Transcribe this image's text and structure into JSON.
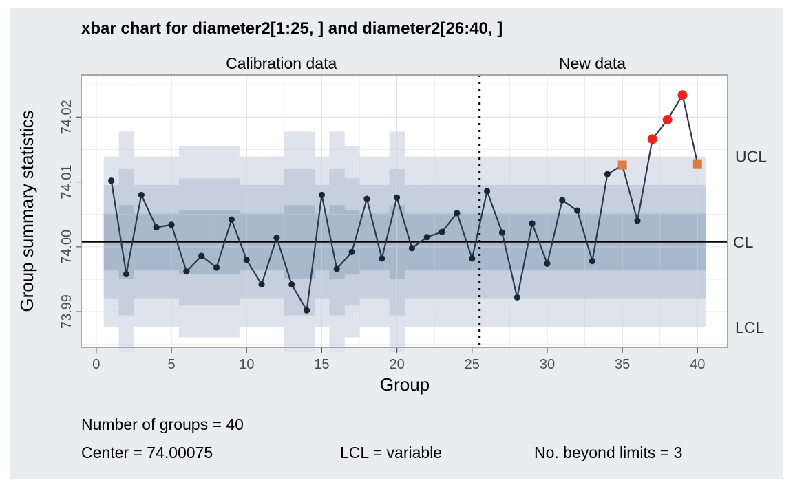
{
  "chart_data": {
    "type": "line",
    "title": "xbar chart for diameter2[1:25, ] and diameter2[26:40, ]",
    "xlabel": "Group",
    "ylabel": "Group summary statistics",
    "xlim": [
      -1,
      42
    ],
    "ylim": [
      73.9845,
      74.0265
    ],
    "x_ticks": [
      0,
      5,
      10,
      15,
      20,
      25,
      30,
      35,
      40
    ],
    "y_ticks": [
      73.99,
      74.0,
      74.01,
      74.02
    ],
    "x_tick_labels": [
      "0",
      "5",
      "10",
      "15",
      "20",
      "25",
      "30",
      "35",
      "40"
    ],
    "y_tick_labels": [
      "73.99",
      "74.00",
      "74.01",
      "74.02"
    ],
    "sections": [
      {
        "label": "Calibration data",
        "from": 1,
        "to": 25
      },
      {
        "label": "New data",
        "from": 26,
        "to": 40
      }
    ],
    "divider_x": 25.5,
    "center": 74.00075,
    "center_label": "CL",
    "ucl_label": "UCL",
    "lcl_label": "LCL",
    "sigma_band": 0.00439,
    "group_sizes": [
      5,
      3,
      5,
      5,
      5,
      4,
      4,
      4,
      4,
      5,
      5,
      5,
      3,
      3,
      5,
      3,
      4,
      5,
      5,
      3,
      5,
      5,
      5,
      5,
      5,
      5,
      5,
      5,
      5,
      5,
      5,
      5,
      5,
      5,
      5,
      5,
      5,
      5,
      5,
      5
    ],
    "x": [
      1,
      2,
      3,
      4,
      5,
      6,
      7,
      8,
      9,
      10,
      11,
      12,
      13,
      14,
      15,
      16,
      17,
      18,
      19,
      20,
      21,
      22,
      23,
      24,
      25,
      26,
      27,
      28,
      29,
      30,
      31,
      32,
      33,
      34,
      35,
      36,
      37,
      38,
      39,
      40
    ],
    "values": [
      74.0102,
      73.9958,
      74.008,
      74.003,
      74.0034,
      73.9962,
      73.9986,
      73.9968,
      74.0042,
      73.998,
      73.9942,
      74.0014,
      73.9942,
      73.9902,
      74.008,
      73.9966,
      73.9992,
      74.0074,
      73.9982,
      74.0076,
      73.9998,
      74.0015,
      74.0023,
      74.0052,
      73.9982,
      74.0086,
      74.0022,
      73.9922,
      74.0036,
      73.9974,
      74.0072,
      74.0056,
      73.9978,
      74.0112,
      74.0126,
      74.004,
      74.0166,
      74.0196,
      74.0234,
      74.0128
    ],
    "point_status": [
      "n",
      "n",
      "n",
      "n",
      "n",
      "n",
      "n",
      "n",
      "n",
      "n",
      "n",
      "n",
      "n",
      "n",
      "n",
      "n",
      "n",
      "n",
      "n",
      "n",
      "n",
      "n",
      "n",
      "n",
      "n",
      "n",
      "n",
      "n",
      "n",
      "n",
      "n",
      "n",
      "n",
      "n",
      "warning",
      "n",
      "beyond",
      "beyond",
      "beyond",
      "warning"
    ],
    "colors": {
      "panel_bg": "#ebecf0",
      "plot_bg": "#ffffff",
      "band_outer": "#dfe4ec",
      "band_middle": "#c5cfdd",
      "band_inner": "#aab8cd",
      "line": "#2b3a4f",
      "point": "#1b2533",
      "beyond": "#e8261f",
      "warning": "#e07a44",
      "center_line": "#000000"
    },
    "grid": true
  },
  "stats": {
    "groups": "Number of groups = 40",
    "center": "Center = 74.00075",
    "lcl": "LCL = variable",
    "beyond": "No. beyond limits = 3"
  }
}
